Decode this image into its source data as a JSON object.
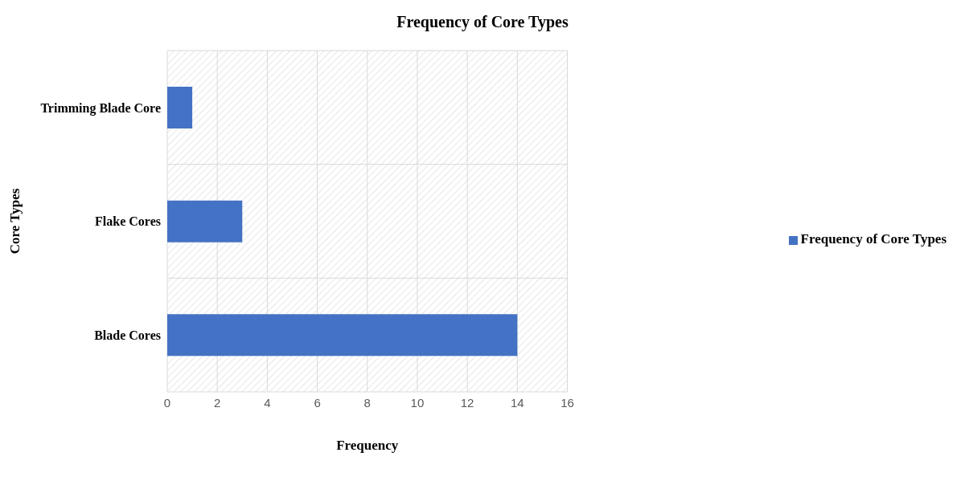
{
  "chart_data": {
    "type": "bar",
    "orientation": "horizontal",
    "title": "Frequency of Core Types",
    "xlabel": "Frequency",
    "ylabel": "Core Types",
    "categories": [
      "Trimming Blade Core",
      "Flake Cores",
      "Blade Cores"
    ],
    "series": [
      {
        "name": "Frequency of Core Types",
        "color": "#4472c4",
        "values": [
          1,
          3,
          14
        ]
      }
    ],
    "xlim": [
      0,
      16
    ],
    "xticks": [
      0,
      2,
      4,
      6,
      8,
      10,
      12,
      14,
      16
    ],
    "grid": true,
    "legend": "right"
  }
}
